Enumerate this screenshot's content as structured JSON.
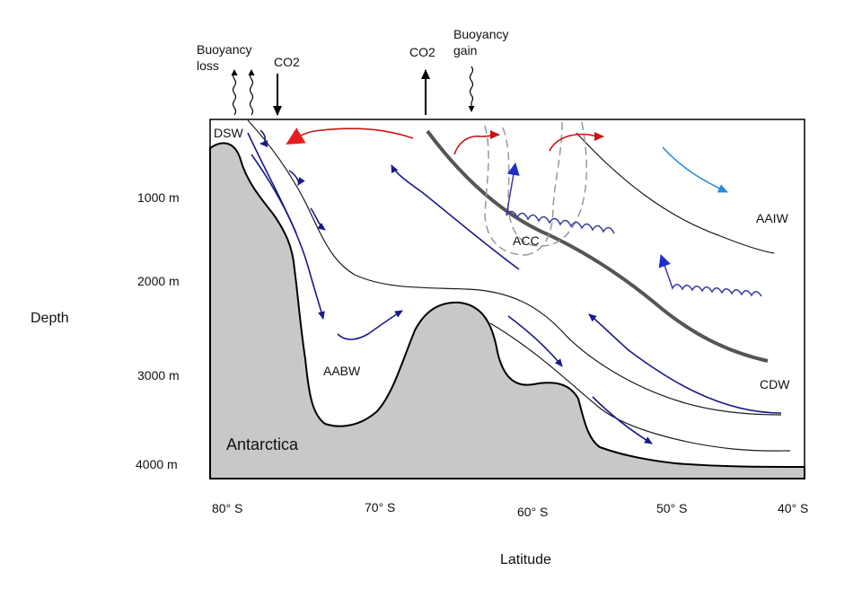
{
  "figure": {
    "surface_labels": {
      "buoyancy_loss": [
        "Buoyancy",
        "loss"
      ],
      "co2_in": "CO2",
      "co2_out": "CO2",
      "buoyancy_gain": [
        "Buoyancy",
        "gain"
      ]
    },
    "water_masses": {
      "dsw": "DSW",
      "aabw": "AABW",
      "acc": "ACC",
      "aaiw": "AAIW",
      "cdw": "CDW"
    },
    "landmass": "Antarctica",
    "y_axis": {
      "title": "Depth",
      "ticks": [
        "1000 m",
        "2000 m",
        "3000 m",
        "4000 m"
      ]
    },
    "x_axis": {
      "title": "Latitude",
      "ticks": [
        "80° S",
        "70° S",
        "60° S",
        "50° S",
        "40° S"
      ]
    },
    "colors": {
      "sea_floor": "#c8c8c8",
      "deep_flow": "#1a1a8c",
      "surface_flow": "#c81414",
      "front": "#555555",
      "acc_outline": "#999999",
      "eddy": "#3c3ca0",
      "intermediate_flow": "#2a8ad8"
    }
  }
}
